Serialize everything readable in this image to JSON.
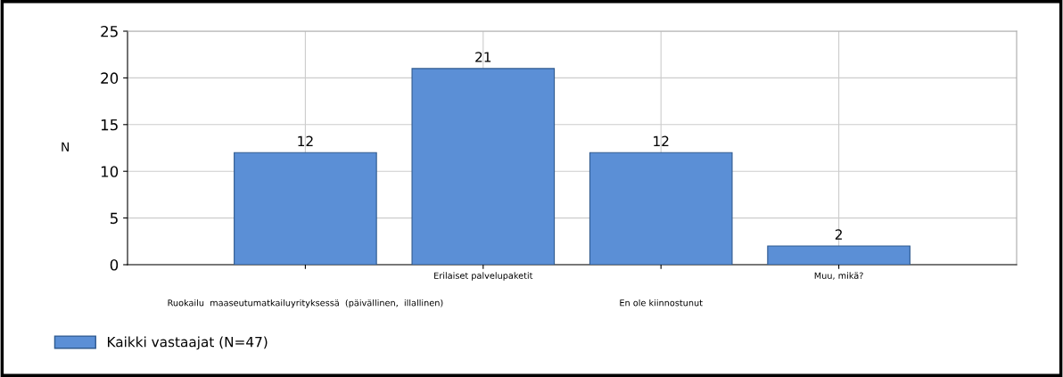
{
  "chart_data": {
    "type": "bar",
    "ylabel": "N",
    "categories": [
      "Ruokailu  maaseutumatkailuyrityksessä  (päivällinen,  illallinen)",
      "Erilaiset palvelupaketit",
      "En ole kiinnostunut",
      "Muu, mikä?"
    ],
    "series": [
      {
        "name": "Kaikki vastaajat (N=47)",
        "color": "#5b8fd6",
        "values": [
          12,
          21,
          12,
          2
        ]
      }
    ],
    "ylim": [
      0,
      25
    ],
    "yticks": [
      0,
      5,
      10,
      15,
      20,
      25
    ],
    "grid": true,
    "data_labels": true,
    "legend": "bottom left"
  }
}
